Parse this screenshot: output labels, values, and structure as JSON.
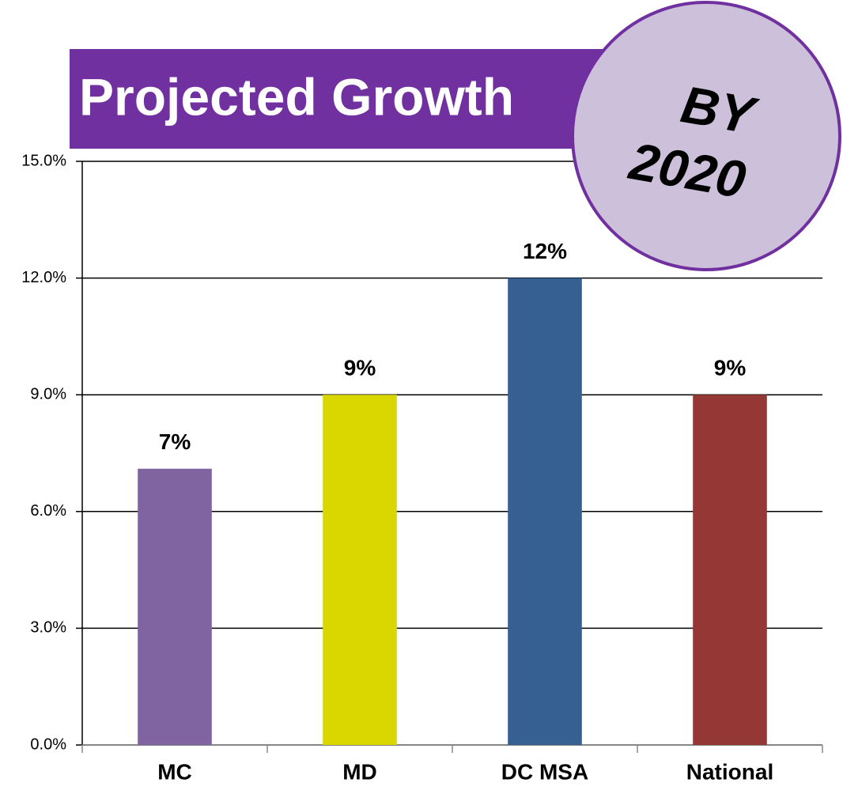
{
  "chart_data": {
    "type": "bar",
    "title": "Projected Growth",
    "annotation": [
      "BY",
      "2020"
    ],
    "categories": [
      "MC",
      "MD",
      "DC MSA",
      "National"
    ],
    "values": [
      7.1,
      9,
      12,
      9
    ],
    "value_labels": [
      "7%",
      "9%",
      "12%",
      "9%"
    ],
    "colors": [
      "#8064a2",
      "#d9d600",
      "#376092",
      "#953735"
    ],
    "ylim": [
      0,
      15
    ],
    "yticks": [
      {
        "value": 0,
        "label": "0.0%"
      },
      {
        "value": 3,
        "label": "3.0%"
      },
      {
        "value": 6,
        "label": "6.0%"
      },
      {
        "value": 9,
        "label": "9.0%"
      },
      {
        "value": 12,
        "label": "12.0%"
      },
      {
        "value": 15,
        "label": "15.0%"
      }
    ],
    "grid": true
  }
}
